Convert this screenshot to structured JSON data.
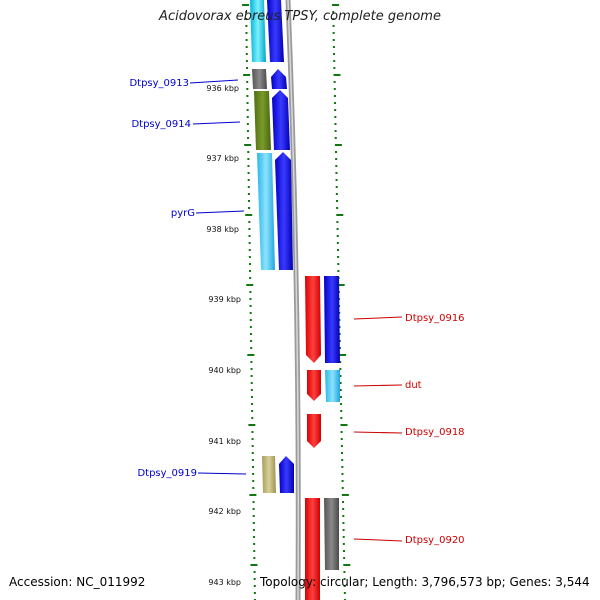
{
  "title": "Acidovorax ebreus TPSY, complete genome",
  "accession": "Accession: NC_011992",
  "stats": "Topology: circular; Length: 3,796,573 bp; Genes: 3,544",
  "colors": {
    "label_left": "#0000cc",
    "label_right": "#cc0000",
    "tick": "#117711",
    "backbone": "#888888"
  },
  "kbp_labels": [
    "936 kbp",
    "937 kbp",
    "938 kbp",
    "939 kbp",
    "940 kbp",
    "941 kbp",
    "942 kbp",
    "943 kbp"
  ],
  "gene_labels": {
    "left": [
      "Dtpsy_0913",
      "Dtpsy_0914",
      "pyrG",
      "Dtpsy_0919"
    ],
    "right": [
      "Dtpsy_0916",
      "dut",
      "Dtpsy_0918",
      "Dtpsy_0920"
    ]
  }
}
